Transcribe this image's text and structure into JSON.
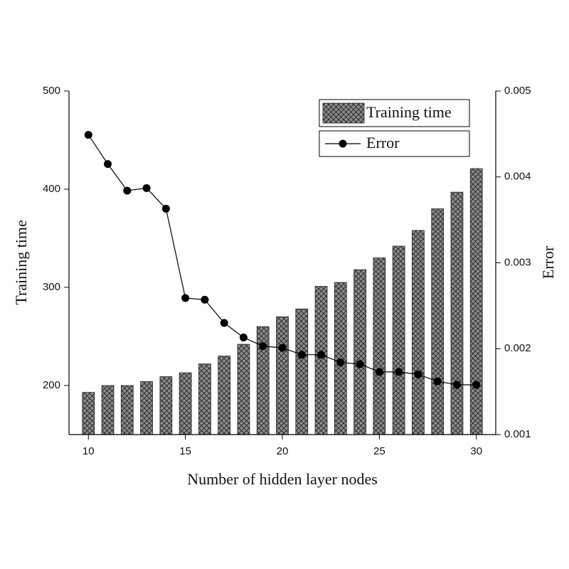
{
  "chart_data": {
    "type": "bar-line",
    "x_label": "Number of hidden layer nodes",
    "y_label": "Training time",
    "y2_label": "Error",
    "x": [
      10,
      11,
      12,
      13,
      14,
      15,
      16,
      17,
      18,
      19,
      20,
      21,
      22,
      23,
      24,
      25,
      26,
      27,
      28,
      29,
      30
    ],
    "series": [
      {
        "name": "Training time",
        "type": "bar",
        "color": "#8c8c8c",
        "values": [
          193,
          200,
          200,
          204,
          209,
          213,
          222,
          230,
          242,
          260,
          270,
          278,
          301,
          305,
          318,
          330,
          342,
          358,
          380,
          397,
          421
        ]
      },
      {
        "name": "Error",
        "type": "line",
        "axis": "y2",
        "color": "#000000",
        "values": [
          0.00449,
          0.00415,
          0.00384,
          0.00387,
          0.00363,
          0.00259,
          0.00257,
          0.0023,
          0.00213,
          0.00203,
          0.00201,
          0.00193,
          0.00193,
          0.00184,
          0.00182,
          0.00173,
          0.00173,
          0.0017,
          0.00162,
          0.00158,
          0.00158
        ]
      }
    ],
    "xlim": [
      9,
      31
    ],
    "xticks": [
      10,
      15,
      20,
      25,
      30
    ],
    "ylim": [
      150,
      500
    ],
    "yticks": [
      200,
      300,
      400,
      500
    ],
    "y2lim": [
      0.001,
      0.005
    ],
    "y2ticks": [
      0.001,
      0.002,
      0.003,
      0.004,
      0.005
    ],
    "legend": "upper-right"
  }
}
